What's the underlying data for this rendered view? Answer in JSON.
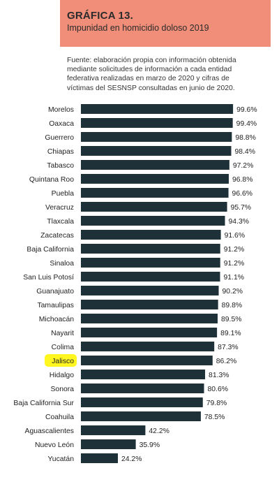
{
  "header": {
    "title": "GRÁFICA 13.",
    "subtitle": "Impunidad en homicidio doloso 2019"
  },
  "source_lines": [
    "Fuente: elaboración propia con información obtenida",
    "mediante solicitudes de información a cada entidad",
    "federativa realizadas en marzo de 2020 y cifras de",
    "víctimas del SESNSP consultadas en junio de 2020."
  ],
  "colors": {
    "header_bg": "#f08e79",
    "bar": "#1e3038",
    "highlight": "#fff71f"
  },
  "chart_data": {
    "type": "bar",
    "orientation": "horizontal",
    "title": "",
    "xlabel": "",
    "ylabel": "",
    "xlim": [
      0,
      100
    ],
    "highlight": "Jalisco",
    "categories": [
      "Morelos",
      "Oaxaca",
      "Guerrero",
      "Chiapas",
      "Tabasco",
      "Quintana Roo",
      "Puebla",
      "Veracruz",
      "Tlaxcala",
      "Zacatecas",
      "Baja California",
      "Sinaloa",
      "San Luis Potosí",
      "Guanajuato",
      "Tamaulipas",
      "Michoacán",
      "Nayarit",
      "Colima",
      "Jalisco",
      "Hidalgo",
      "Sonora",
      "Baja California Sur",
      "Coahuila",
      "Aguascalientes",
      "Nuevo León",
      "Yucatán"
    ],
    "values": [
      99.6,
      99.4,
      98.8,
      98.4,
      97.2,
      96.8,
      96.6,
      95.7,
      94.3,
      91.6,
      91.2,
      91.2,
      91.1,
      90.2,
      89.8,
      89.5,
      89.1,
      87.3,
      86.2,
      81.3,
      80.6,
      79.8,
      78.5,
      42.2,
      35.9,
      24.2
    ],
    "value_labels": [
      "99.6%",
      "99.4%",
      "98.8%",
      "98.4%",
      "97.2%",
      "96.8%",
      "96.6%",
      "95.7%",
      "94.3%",
      "91.6%",
      "91.2%",
      "91.2%",
      "91.1%",
      "90.2%",
      "89.8%",
      "89.5%",
      "89.1%",
      "87.3%",
      "86.2%",
      "81.3%",
      "80.6%",
      "79.8%",
      "78.5%",
      "42.2%",
      "35.9%",
      "24.2%"
    ]
  }
}
